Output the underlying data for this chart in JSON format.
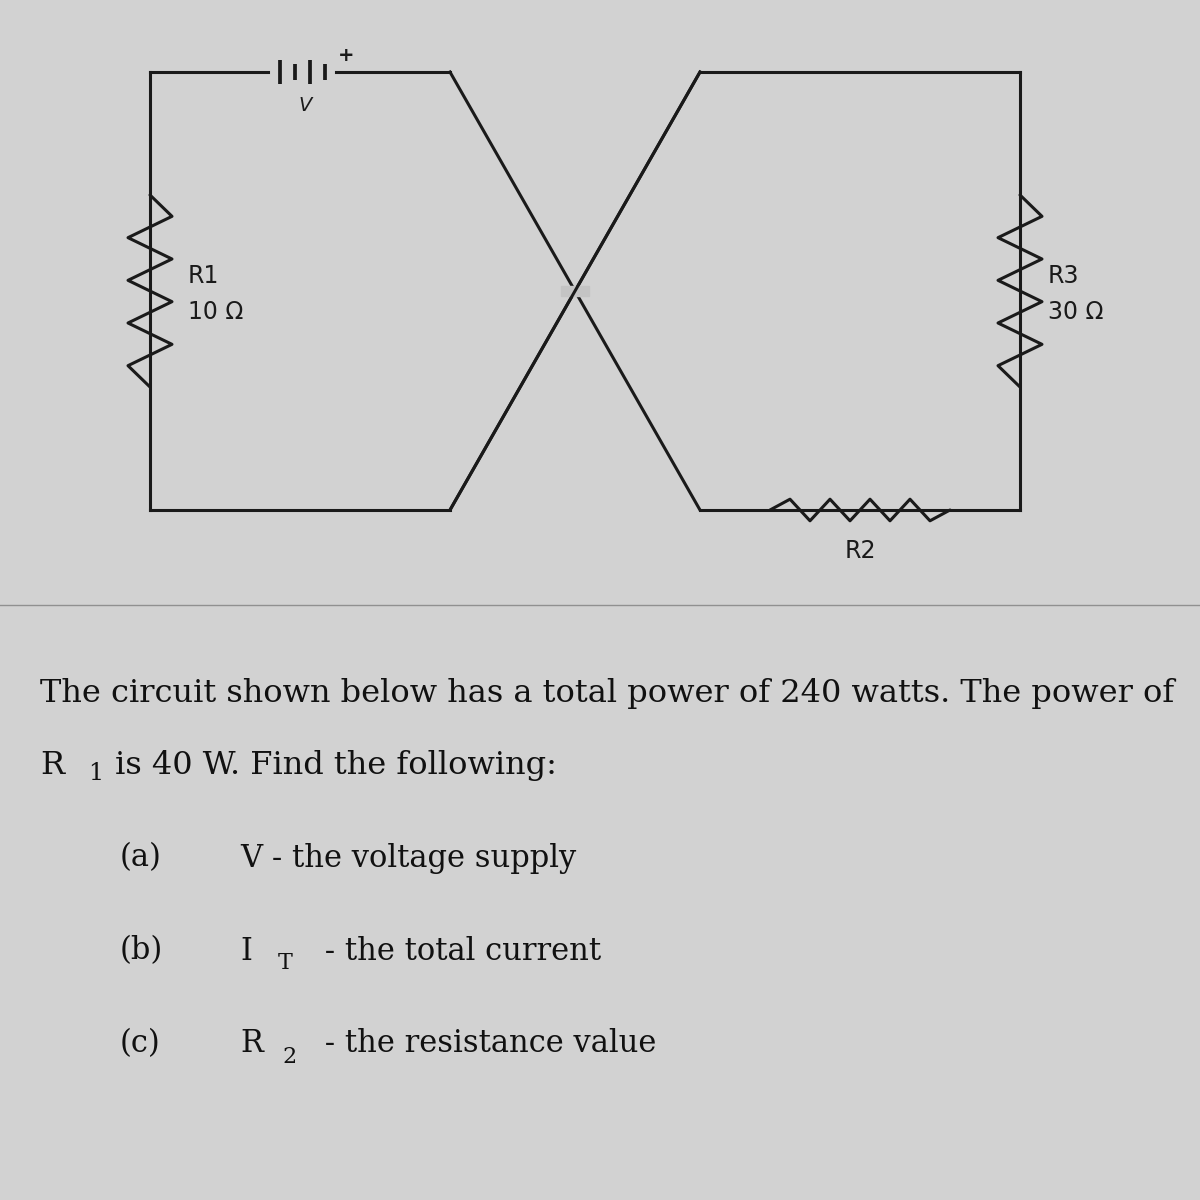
{
  "bg_color_top": "#c4c4c4",
  "bg_color_bottom": "#d2d2d2",
  "line_color": "#1a1a1a",
  "line_width": 2.2,
  "circuit": {
    "r1_label": "R1",
    "r1_value": "10 Ω",
    "r2_label": "R2",
    "r3_label": "R3",
    "r3_value": "30 Ω"
  },
  "font_size_problem": 23,
  "font_size_parts": 22
}
